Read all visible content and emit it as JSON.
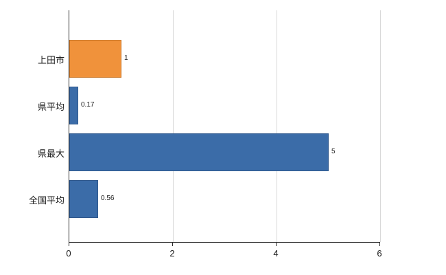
{
  "chart_data": {
    "type": "bar",
    "orientation": "horizontal",
    "title": "",
    "xlabel": "",
    "ylabel": "",
    "categories": [
      "上田市",
      "県平均",
      "県最大",
      "全国平均"
    ],
    "values": [
      1,
      0.17,
      5,
      0.56
    ],
    "value_labels": [
      "1",
      "0.17",
      "5",
      "0.56"
    ],
    "bar_colors": [
      "#F0923B",
      "#3B6CA8",
      "#3B6CA8",
      "#3B6CA8"
    ],
    "bar_border_colors": [
      "#C9772A",
      "#2E578C",
      "#2E578C",
      "#2E578C"
    ],
    "xlim": [
      0,
      6
    ],
    "x_ticks": [
      "0",
      "2",
      "4",
      "6"
    ],
    "grid": true,
    "legend": "none",
    "colors": {
      "axis": "#2b2b2b",
      "gridline": "#d9d9d9",
      "background": "#ffffff"
    }
  }
}
